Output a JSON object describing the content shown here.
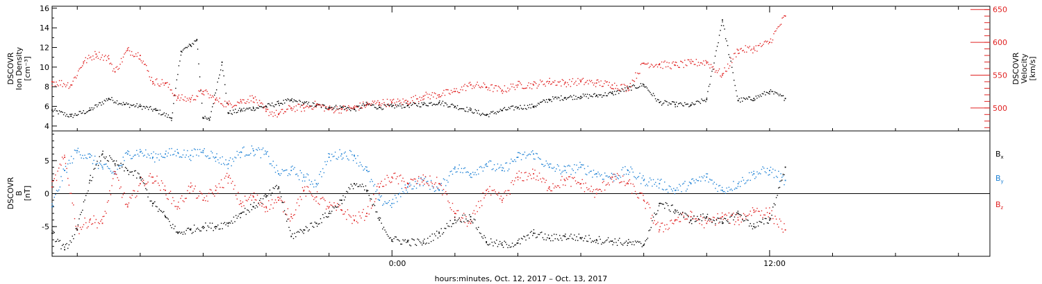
{
  "figure": {
    "xlabel": "hours:minutes, Oct. 12, 2017 – Oct. 13, 2017",
    "x_tick_labels": [
      "0:00",
      "12:00"
    ]
  },
  "colors": {
    "axis": "#000000",
    "red": "#e02020",
    "blue": "#1a7fd4",
    "black": "#000000"
  },
  "chart_data": [
    {
      "type": "scatter",
      "panel": "top",
      "ylabel_left": [
        "DSCOVR",
        "Ion Density",
        "[cm⁻³]"
      ],
      "ylabel_right": [
        "DSCOVR",
        "Velocity",
        "[km/s]"
      ],
      "left_ticks": [
        "4",
        "6",
        "8",
        "10",
        "12",
        "14",
        "16"
      ],
      "right_ticks": [
        "500",
        "550",
        "600",
        "650"
      ],
      "ylim_left": [
        3.5,
        16.2
      ],
      "ylim_right": [
        465,
        655
      ],
      "x_unit": "hours from Oct. 12, 2017 0:00",
      "xlim": [
        -10.8,
        19.0
      ],
      "series": [
        {
          "name": "Ion Density",
          "color": "black",
          "axis": "left",
          "x": [
            -10.8,
            -10.2,
            -9.6,
            -9.0,
            -8.5,
            -8.0,
            -7.5,
            -7.0,
            -6.7,
            -6.4,
            -6.2,
            -6.0,
            -5.8,
            -5.4,
            -5.2,
            -4.8,
            -4.4,
            -4.0,
            -3.6,
            -3.2,
            -2.8,
            -2.4,
            -2.0,
            -1.6,
            -1.2,
            -0.8,
            -0.4,
            0.0,
            0.5,
            1.0,
            1.5,
            2.0,
            2.5,
            3.0,
            3.5,
            4.0,
            4.5,
            5.0,
            5.5,
            6.0,
            6.5,
            7.0,
            7.5,
            8.0,
            8.5,
            9.0,
            9.5,
            10.0,
            10.5,
            11.0,
            11.5,
            12.0,
            12.5
          ],
          "y": [
            5.6,
            5.0,
            5.6,
            6.8,
            6.2,
            6.0,
            5.6,
            4.8,
            11.6,
            12.2,
            12.8,
            4.8,
            4.6,
            10.5,
            5.3,
            5.6,
            5.8,
            6.0,
            6.3,
            6.6,
            6.3,
            6.1,
            5.9,
            5.9,
            5.7,
            6.2,
            5.9,
            6.0,
            6.1,
            6.2,
            6.4,
            6.0,
            5.6,
            5.1,
            5.6,
            5.9,
            6.0,
            6.7,
            6.9,
            7.0,
            7.1,
            7.3,
            7.8,
            8.2,
            6.4,
            6.2,
            6.1,
            6.7,
            14.8,
            6.6,
            6.8,
            7.5,
            6.8
          ]
        },
        {
          "name": "Velocity",
          "color": "red",
          "axis": "right",
          "x": [
            -10.8,
            -10.2,
            -9.8,
            -9.4,
            -9.0,
            -8.8,
            -8.4,
            -8.0,
            -7.6,
            -7.2,
            -6.8,
            -6.4,
            -6.0,
            -5.6,
            -5.2,
            -4.8,
            -4.4,
            -4.0,
            -3.6,
            -3.2,
            -2.8,
            -2.4,
            -2.0,
            -1.6,
            -1.2,
            -0.8,
            -0.4,
            0.0,
            0.5,
            1.0,
            1.5,
            2.0,
            2.5,
            3.0,
            3.5,
            4.0,
            4.5,
            5.0,
            5.5,
            6.0,
            6.5,
            7.0,
            7.5,
            8.0,
            8.5,
            9.0,
            9.5,
            10.0,
            10.5,
            11.0,
            11.5,
            12.0,
            12.5
          ],
          "y": [
            540,
            535,
            570,
            582,
            575,
            555,
            588,
            580,
            540,
            538,
            515,
            513,
            525,
            512,
            505,
            510,
            515,
            495,
            490,
            500,
            500,
            505,
            498,
            498,
            500,
            505,
            508,
            508,
            510,
            518,
            520,
            525,
            535,
            532,
            527,
            535,
            535,
            540,
            538,
            540,
            538,
            535,
            530,
            568,
            566,
            565,
            568,
            570,
            550,
            588,
            590,
            600,
            640
          ]
        }
      ]
    },
    {
      "type": "scatter",
      "panel": "bottom",
      "ylabel_left": [
        "DSCOVR",
        "B",
        "[nT]"
      ],
      "left_ticks": [
        "-5",
        "0",
        "5"
      ],
      "ylim": [
        -9.5,
        9.5
      ],
      "x_unit": "hours from Oct. 12, 2017 0:00",
      "xlim": [
        -10.8,
        19.0
      ],
      "series": [
        {
          "name": "Bx",
          "legend_main": "B",
          "legend_sub": "x",
          "color": "black",
          "x": [
            -10.8,
            -10.4,
            -10.0,
            -9.6,
            -9.2,
            -8.8,
            -8.4,
            -8.0,
            -7.6,
            -7.2,
            -6.8,
            -6.4,
            -6.0,
            -5.6,
            -5.2,
            -4.8,
            -4.4,
            -4.0,
            -3.6,
            -3.2,
            -2.8,
            -2.4,
            -2.0,
            -1.6,
            -1.2,
            -0.8,
            -0.4,
            0.0,
            0.5,
            1.0,
            1.5,
            2.0,
            2.5,
            3.0,
            3.5,
            4.0,
            4.5,
            5.0,
            5.5,
            6.0,
            6.5,
            7.0,
            7.5,
            8.0,
            8.5,
            9.0,
            9.5,
            10.0,
            10.5,
            11.0,
            11.5,
            12.0,
            12.5
          ],
          "y": [
            -6.0,
            -8.5,
            -5.5,
            2.0,
            6.0,
            4.5,
            3.5,
            2.5,
            -1.5,
            -3.5,
            -6.0,
            -5.5,
            -5.0,
            -5.0,
            -4.5,
            -3.0,
            -2.0,
            -0.5,
            1.0,
            -6.5,
            -5.5,
            -4.5,
            -3.0,
            -1.0,
            1.5,
            0.5,
            -4.0,
            -7.0,
            -7.3,
            -7.5,
            -6.0,
            -4.0,
            -3.5,
            -7.3,
            -7.8,
            -7.5,
            -6.0,
            -6.8,
            -6.5,
            -6.7,
            -7.0,
            -7.2,
            -7.5,
            -7.8,
            -1.5,
            -2.5,
            -4.0,
            -3.5,
            -4.5,
            -3.0,
            -5.0,
            -4.0,
            4.0
          ]
        },
        {
          "name": "By",
          "legend_main": "B",
          "legend_sub": "y",
          "color": "blue",
          "x": [
            -10.8,
            -10.4,
            -10.0,
            -9.6,
            -9.2,
            -8.8,
            -8.4,
            -8.0,
            -7.6,
            -7.2,
            -6.8,
            -6.4,
            -6.0,
            -5.6,
            -5.2,
            -4.8,
            -4.4,
            -4.0,
            -3.6,
            -3.2,
            -2.8,
            -2.4,
            -2.0,
            -1.6,
            -1.2,
            -0.8,
            -0.4,
            0.0,
            0.5,
            1.0,
            1.5,
            2.0,
            2.5,
            3.0,
            3.5,
            4.0,
            4.5,
            5.0,
            5.5,
            6.0,
            6.5,
            7.0,
            7.5,
            8.0,
            8.5,
            9.0,
            9.5,
            10.0,
            10.5,
            11.0,
            11.5,
            12.0,
            12.5
          ],
          "y": [
            -2.0,
            3.5,
            6.5,
            5.5,
            4.0,
            3.0,
            6.0,
            6.3,
            5.5,
            6.0,
            6.2,
            5.8,
            6.5,
            5.5,
            4.5,
            6.3,
            6.5,
            6.0,
            3.0,
            3.5,
            2.5,
            1.5,
            5.5,
            6.0,
            5.8,
            3.5,
            -1.0,
            -1.5,
            1.0,
            2.0,
            0.5,
            4.0,
            3.0,
            4.5,
            3.5,
            5.5,
            6.0,
            4.0,
            3.5,
            4.0,
            3.0,
            2.5,
            3.5,
            2.0,
            1.5,
            0.5,
            1.5,
            2.5,
            0.5,
            1.5,
            3.0,
            3.5,
            2.0
          ]
        },
        {
          "name": "Bz",
          "legend_main": "B",
          "legend_sub": "z",
          "color": "red",
          "x": [
            -10.8,
            -10.4,
            -10.0,
            -9.6,
            -9.2,
            -8.8,
            -8.4,
            -8.0,
            -7.6,
            -7.2,
            -6.8,
            -6.4,
            -6.0,
            -5.6,
            -5.2,
            -4.8,
            -4.4,
            -4.0,
            -3.6,
            -3.2,
            -2.8,
            -2.4,
            -2.0,
            -1.6,
            -1.2,
            -0.8,
            -0.4,
            0.0,
            0.5,
            1.0,
            1.5,
            2.0,
            2.5,
            3.0,
            3.5,
            4.0,
            4.5,
            5.0,
            5.5,
            6.0,
            6.5,
            7.0,
            7.5,
            8.0,
            8.5,
            9.0,
            9.5,
            10.0,
            10.5,
            11.0,
            11.5,
            12.0,
            12.5
          ],
          "y": [
            1.0,
            5.5,
            -5.5,
            -4.0,
            -4.5,
            3.0,
            -2.0,
            1.5,
            2.5,
            0.5,
            -2.0,
            1.0,
            -1.0,
            0.5,
            2.5,
            -1.5,
            -0.5,
            -2.0,
            -1.0,
            -3.5,
            0.5,
            -0.5,
            -2.0,
            -2.5,
            -4.0,
            -3.0,
            1.0,
            2.5,
            1.5,
            2.0,
            1.5,
            -3.0,
            -4.5,
            0.5,
            -1.0,
            2.5,
            3.0,
            1.0,
            2.0,
            1.5,
            0.0,
            2.5,
            1.5,
            -1.0,
            -5.5,
            -4.0,
            -3.5,
            -4.5,
            -3.5,
            -4.0,
            -2.5,
            -3.0,
            -5.5
          ]
        }
      ]
    }
  ]
}
